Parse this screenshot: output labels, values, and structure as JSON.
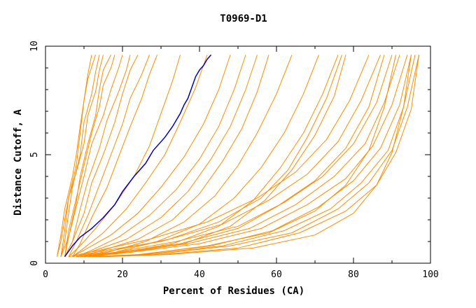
{
  "chart_data": {
    "type": "line",
    "title": "T0969-D1",
    "xlabel": "Percent of Residues (CA)",
    "ylabel": "Distance Cutoff, A",
    "xlim": [
      0,
      100
    ],
    "ylim": [
      0,
      10
    ],
    "xticks": [
      "0",
      "20",
      "40",
      "60",
      "80",
      "100"
    ],
    "yticks": [
      "0",
      "5",
      "10"
    ],
    "grid": false,
    "colors": {
      "models": "#ff8c00",
      "highlight": "#0000cc"
    },
    "highlight": {
      "x": [
        5,
        7,
        9,
        12,
        15,
        18,
        20,
        23,
        26,
        28,
        31,
        33,
        35,
        36,
        37,
        38,
        39,
        40,
        41,
        42,
        43
      ],
      "y": [
        0.3,
        0.8,
        1.2,
        1.6,
        2.1,
        2.7,
        3.3,
        4.0,
        4.6,
        5.2,
        5.8,
        6.3,
        6.9,
        7.3,
        7.6,
        8.1,
        8.6,
        8.9,
        9.1,
        9.4,
        9.6
      ]
    },
    "series": [
      {
        "x": [
          3,
          4,
          5,
          6,
          8,
          9,
          10,
          11,
          12
        ],
        "y": [
          0.3,
          1,
          2,
          3,
          4.5,
          6,
          7.5,
          8.7,
          9.6
        ]
      },
      {
        "x": [
          3,
          4,
          5,
          7,
          8,
          9,
          10,
          11,
          13
        ],
        "y": [
          0.3,
          1.3,
          2.5,
          4,
          5,
          6.3,
          7.5,
          8.5,
          9.6
        ]
      },
      {
        "x": [
          4,
          5,
          6,
          7,
          9,
          10,
          12,
          13,
          14
        ],
        "y": [
          0.3,
          1,
          2.3,
          3.5,
          5,
          6.5,
          7.8,
          8.8,
          9.6
        ]
      },
      {
        "x": [
          4,
          5,
          6,
          8,
          10,
          11,
          13,
          14,
          15
        ],
        "y": [
          0.3,
          1.5,
          3,
          4.2,
          5.5,
          6.8,
          7.9,
          8.9,
          9.6
        ]
      },
      {
        "x": [
          5,
          6,
          8,
          9,
          11,
          13,
          14,
          15,
          17
        ],
        "y": [
          0.3,
          1.2,
          2.8,
          4,
          5.5,
          6.8,
          8,
          8.9,
          9.6
        ]
      },
      {
        "x": [
          5,
          6,
          8,
          10,
          12,
          14,
          15,
          17,
          18
        ],
        "y": [
          0.3,
          1.5,
          3,
          4.5,
          6,
          7.2,
          8.2,
          9,
          9.6
        ]
      },
      {
        "x": [
          4,
          6,
          8,
          10,
          12,
          15,
          17,
          19,
          20
        ],
        "y": [
          0.3,
          1.2,
          2.6,
          4,
          5.5,
          6.8,
          8,
          9,
          9.6
        ]
      },
      {
        "x": [
          5,
          7,
          9,
          11,
          14,
          16,
          19,
          21,
          22
        ],
        "y": [
          0.3,
          1,
          2.5,
          3.8,
          5.3,
          6.6,
          7.9,
          8.9,
          9.6
        ]
      },
      {
        "x": [
          5,
          7,
          10,
          12,
          15,
          18,
          20,
          22,
          24
        ],
        "y": [
          0.3,
          1,
          2.3,
          3.7,
          5,
          6.5,
          7.8,
          8.9,
          9.6
        ]
      },
      {
        "x": [
          6,
          8,
          11,
          14,
          17,
          20,
          22,
          25,
          27
        ],
        "y": [
          0.3,
          1,
          2.2,
          3.6,
          5,
          6.4,
          7.6,
          8.7,
          9.6
        ]
      },
      {
        "x": [
          7,
          9,
          12,
          16,
          19,
          22,
          25,
          27,
          29
        ],
        "y": [
          0.3,
          0.9,
          2.1,
          3.5,
          4.9,
          6.3,
          7.6,
          8.7,
          9.6
        ]
      },
      {
        "x": [
          6,
          9,
          13,
          18,
          23,
          27,
          30,
          33,
          35
        ],
        "y": [
          0.3,
          0.8,
          1.6,
          2.7,
          4,
          5.4,
          6.9,
          8.4,
          9.6
        ]
      },
      {
        "x": [
          7,
          10,
          15,
          21,
          26,
          31,
          35,
          39,
          42
        ],
        "y": [
          0.3,
          0.7,
          1.4,
          2.5,
          3.7,
          5,
          6.5,
          8.1,
          9.6
        ]
      },
      {
        "x": [
          7,
          11,
          17,
          24,
          30,
          36,
          41,
          45,
          48
        ],
        "y": [
          0.3,
          0.7,
          1.3,
          2.3,
          3.5,
          4.9,
          6.4,
          8,
          9.6
        ]
      },
      {
        "x": [
          8,
          12,
          19,
          27,
          34,
          40,
          45,
          49,
          52
        ],
        "y": [
          0.3,
          0.6,
          1.2,
          2.2,
          3.4,
          4.8,
          6.3,
          8,
          9.6
        ]
      },
      {
        "x": [
          8,
          13,
          21,
          30,
          37,
          43,
          48,
          52,
          55
        ],
        "y": [
          0.3,
          0.6,
          1.1,
          2.1,
          3.3,
          4.8,
          6.3,
          8,
          9.6
        ]
      },
      {
        "x": [
          9,
          15,
          24,
          33,
          40,
          46,
          51,
          55,
          58
        ],
        "y": [
          0.3,
          0.6,
          1.1,
          2,
          3.2,
          4.7,
          6.2,
          7.9,
          9.6
        ]
      },
      {
        "x": [
          9,
          16,
          26,
          36,
          44,
          50,
          55,
          60,
          64
        ],
        "y": [
          0.3,
          0.5,
          1,
          1.9,
          3.1,
          4.5,
          6,
          7.8,
          9.6
        ]
      },
      {
        "x": [
          10,
          18,
          29,
          40,
          49,
          56,
          62,
          67,
          71
        ],
        "y": [
          0.3,
          0.5,
          1,
          1.8,
          3,
          4.4,
          6,
          7.8,
          9.6
        ]
      },
      {
        "x": [
          10,
          20,
          33,
          45,
          54,
          61,
          67,
          72,
          76
        ],
        "y": [
          0.3,
          0.5,
          0.9,
          1.7,
          2.9,
          4.4,
          6,
          7.8,
          9.6
        ]
      },
      {
        "x": [
          11,
          22,
          36,
          48,
          57,
          64,
          70,
          75,
          78
        ],
        "y": [
          0.3,
          0.5,
          0.9,
          1.7,
          2.9,
          4.3,
          5.9,
          7.7,
          9.6
        ]
      },
      {
        "x": [
          8,
          18,
          32,
          45,
          56,
          63,
          68,
          73,
          77
        ],
        "y": [
          0.3,
          0.6,
          1.1,
          1.9,
          3,
          4.3,
          5.8,
          7.6,
          9.6
        ]
      },
      {
        "x": [
          6,
          14,
          27,
          42,
          55,
          65,
          73,
          79,
          84
        ],
        "y": [
          0.3,
          0.6,
          1.1,
          1.9,
          3,
          4.2,
          5.7,
          7.5,
          9.6
        ]
      },
      {
        "x": [
          7,
          16,
          30,
          46,
          58,
          68,
          76,
          82,
          87
        ],
        "y": [
          0.3,
          0.6,
          1,
          1.8,
          2.9,
          4.1,
          5.6,
          7.5,
          9.6
        ]
      },
      {
        "x": [
          8,
          18,
          34,
          50,
          62,
          72,
          80,
          86,
          90
        ],
        "y": [
          0.3,
          0.5,
          1,
          1.7,
          2.8,
          4,
          5.5,
          7.4,
          9.6
        ]
      },
      {
        "x": [
          9,
          20,
          37,
          53,
          65,
          75,
          83,
          88,
          92
        ],
        "y": [
          0.3,
          0.5,
          0.9,
          1.6,
          2.7,
          4,
          5.5,
          7.4,
          9.6
        ]
      },
      {
        "x": [
          10,
          22,
          40,
          56,
          68,
          78,
          85,
          90,
          94
        ],
        "y": [
          0.3,
          0.5,
          0.9,
          1.6,
          2.7,
          3.9,
          5.4,
          7.3,
          9.6
        ]
      },
      {
        "x": [
          11,
          24,
          43,
          59,
          71,
          80,
          87,
          92,
          95
        ],
        "y": [
          0.3,
          0.4,
          0.8,
          1.5,
          2.6,
          3.8,
          5.3,
          7.3,
          9.6
        ]
      },
      {
        "x": [
          12,
          26,
          46,
          62,
          74,
          82,
          89,
          93,
          96
        ],
        "y": [
          0.3,
          0.4,
          0.8,
          1.5,
          2.5,
          3.7,
          5.2,
          7.2,
          9.6
        ]
      },
      {
        "x": [
          13,
          28,
          48,
          64,
          76,
          84,
          90,
          94,
          97
        ],
        "y": [
          0.3,
          0.4,
          0.8,
          1.4,
          2.5,
          3.7,
          5.2,
          7.2,
          9.6
        ]
      },
      {
        "x": [
          14,
          30,
          50,
          66,
          78,
          86,
          91,
          95,
          97
        ],
        "y": [
          0.3,
          0.4,
          0.7,
          1.4,
          2.4,
          3.6,
          5.1,
          7.1,
          9.6
        ]
      },
      {
        "x": [
          9,
          19,
          35,
          50,
          60,
          70,
          78,
          84,
          88
        ],
        "y": [
          0.3,
          0.5,
          0.9,
          1.6,
          2.6,
          3.8,
          5.3,
          7.2,
          9.6
        ]
      },
      {
        "x": [
          12,
          25,
          42,
          58,
          70,
          78,
          84,
          88,
          91
        ],
        "y": [
          0.3,
          0.4,
          0.8,
          1.4,
          2.4,
          3.6,
          5.2,
          7.2,
          9.6
        ]
      },
      {
        "x": [
          15,
          32,
          54,
          70,
          80,
          86,
          90,
          93,
          95
        ],
        "y": [
          0.3,
          0.4,
          0.7,
          1.3,
          2.3,
          3.6,
          5.1,
          7.2,
          9.6
        ]
      }
    ]
  }
}
